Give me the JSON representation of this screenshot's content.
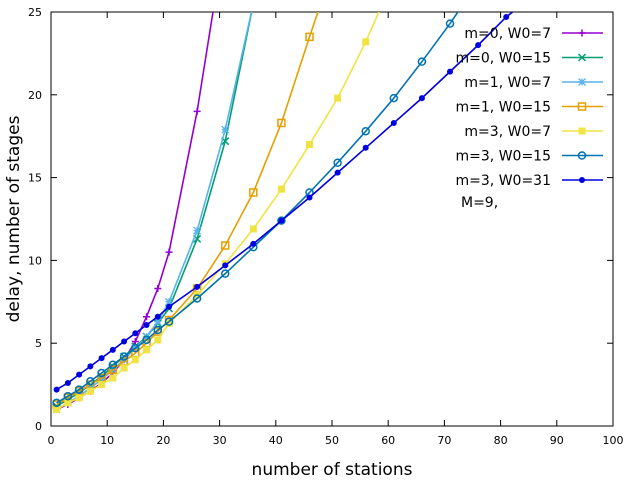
{
  "chart_data": {
    "type": "line",
    "title": "",
    "xlabel": "number of stations",
    "ylabel": "delay, number of stages",
    "xlim": [
      0,
      100
    ],
    "ylim": [
      0,
      25
    ],
    "x_ticks": [
      0,
      10,
      20,
      30,
      40,
      50,
      60,
      70,
      80,
      90,
      100
    ],
    "y_ticks": [
      0,
      5,
      10,
      15,
      20,
      25
    ],
    "grid": false,
    "legend_position": "top-right",
    "annotation": "M=9,",
    "series": [
      {
        "name": "m=0, W0=7",
        "color": "#9400d3",
        "marker": "plus",
        "x": [
          1,
          3,
          5,
          7,
          9,
          11,
          13,
          15,
          17,
          19,
          21,
          26,
          30
        ],
        "y": [
          1.0,
          1.3,
          1.7,
          2.1,
          2.6,
          3.2,
          4.0,
          5.1,
          6.6,
          8.3,
          10.5,
          19.0,
          27.5
        ]
      },
      {
        "name": "m=0, W0=15",
        "color": "#009e73",
        "marker": "cross",
        "x": [
          1,
          3,
          5,
          7,
          9,
          11,
          13,
          15,
          17,
          19,
          21,
          26,
          31,
          36
        ],
        "y": [
          1.2,
          1.6,
          2.0,
          2.5,
          3.0,
          3.6,
          4.2,
          4.8,
          5.4,
          6.2,
          7.1,
          11.3,
          17.2,
          25.5
        ]
      },
      {
        "name": "m=1, W0=7",
        "color": "#56b4e9",
        "marker": "star",
        "x": [
          1,
          3,
          5,
          7,
          9,
          11,
          13,
          15,
          17,
          19,
          21,
          26,
          31,
          36
        ],
        "y": [
          1.0,
          1.4,
          1.8,
          2.3,
          2.8,
          3.4,
          4.0,
          4.7,
          5.4,
          6.3,
          7.5,
          11.8,
          17.9,
          25.5
        ]
      },
      {
        "name": "m=1, W0=15",
        "color": "#e69f00",
        "marker": "square-open",
        "x": [
          1,
          3,
          5,
          7,
          9,
          11,
          13,
          15,
          17,
          19,
          21,
          26,
          31,
          36,
          41,
          46,
          48
        ],
        "y": [
          1.3,
          1.7,
          2.1,
          2.5,
          2.9,
          3.4,
          3.9,
          4.4,
          5.0,
          5.7,
          6.4,
          8.3,
          10.9,
          14.1,
          18.3,
          23.5,
          25.5
        ]
      },
      {
        "name": "m=3, W0=7",
        "color": "#f0e442",
        "marker": "square-filled",
        "x": [
          1,
          3,
          5,
          7,
          9,
          11,
          13,
          15,
          17,
          19,
          21,
          26,
          31,
          36,
          41,
          46,
          51,
          56,
          59
        ],
        "y": [
          1.0,
          1.4,
          1.7,
          2.1,
          2.5,
          2.9,
          3.5,
          4.0,
          4.6,
          5.2,
          6.2,
          7.9,
          9.8,
          11.9,
          14.3,
          17.0,
          19.8,
          23.2,
          25.5
        ]
      },
      {
        "name": "m=3, W0=15",
        "color": "#0072b2",
        "marker": "circle-open",
        "x": [
          1,
          3,
          5,
          7,
          9,
          11,
          13,
          15,
          17,
          19,
          21,
          26,
          31,
          36,
          41,
          46,
          51,
          56,
          61,
          66,
          71,
          76
        ],
        "y": [
          1.4,
          1.8,
          2.2,
          2.7,
          3.2,
          3.7,
          4.2,
          4.7,
          5.2,
          5.8,
          6.3,
          7.7,
          9.2,
          10.8,
          12.4,
          14.1,
          15.9,
          17.8,
          19.8,
          22.0,
          24.3,
          26.8
        ]
      },
      {
        "name": "m=3, W0=31",
        "color": "#0000e0",
        "marker": "circle-filled",
        "x": [
          1,
          3,
          5,
          7,
          9,
          11,
          13,
          15,
          17,
          19,
          21,
          26,
          31,
          36,
          41,
          46,
          51,
          56,
          61,
          66,
          71,
          76,
          81,
          84
        ],
        "y": [
          2.2,
          2.6,
          3.1,
          3.6,
          4.1,
          4.6,
          5.1,
          5.6,
          6.1,
          6.6,
          7.2,
          8.4,
          9.7,
          11.0,
          12.4,
          13.8,
          15.3,
          16.8,
          18.3,
          19.8,
          21.4,
          23.0,
          24.7,
          25.5
        ]
      }
    ]
  }
}
